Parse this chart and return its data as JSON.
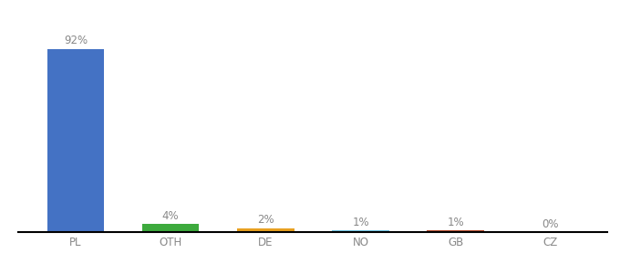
{
  "categories": [
    "PL",
    "OTH",
    "DE",
    "NO",
    "GB",
    "CZ"
  ],
  "values": [
    92,
    4,
    2,
    1,
    1,
    0
  ],
  "labels": [
    "92%",
    "4%",
    "2%",
    "1%",
    "1%",
    "0%"
  ],
  "bar_colors": [
    "#4472c4",
    "#3daa3d",
    "#e8a020",
    "#6ec6e8",
    "#b84a2a",
    "#aaaaaa"
  ],
  "background_color": "#ffffff",
  "ylim": [
    0,
    100
  ],
  "label_fontsize": 8.5,
  "tick_fontsize": 8.5,
  "bar_width": 0.6
}
